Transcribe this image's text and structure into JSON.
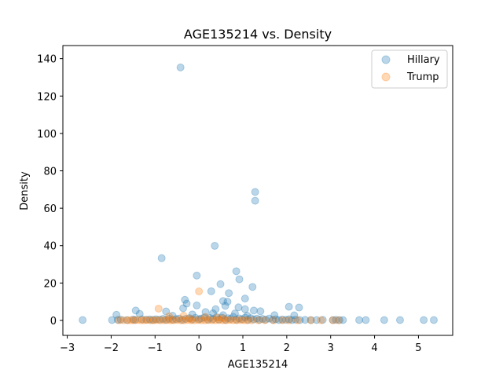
{
  "chart_data": {
    "type": "scatter",
    "title": "AGE135214 vs. Density",
    "xlabel": "AGE135214",
    "ylabel": "Density",
    "xlim": [
      -3.1,
      5.78
    ],
    "ylim": [
      -8,
      147
    ],
    "xticks": [
      -3,
      -2,
      -1,
      0,
      1,
      2,
      3,
      4,
      5
    ],
    "yticks": [
      0,
      20,
      40,
      60,
      80,
      100,
      120,
      140
    ],
    "grid": false,
    "legend_position": "top-right",
    "marker_alpha": 0.3,
    "series": [
      {
        "name": "Hillary",
        "color": "#1f77b4",
        "points": [
          [
            -0.42,
            135.3
          ],
          [
            1.28,
            68.7
          ],
          [
            1.28,
            64.0
          ],
          [
            0.36,
            39.9
          ],
          [
            -0.85,
            33.3
          ],
          [
            0.85,
            26.3
          ],
          [
            -0.05,
            24.0
          ],
          [
            0.92,
            22.0
          ],
          [
            0.49,
            19.4
          ],
          [
            1.22,
            17.9
          ],
          [
            0.28,
            15.6
          ],
          [
            0.68,
            14.6
          ],
          [
            -0.32,
            11.0
          ],
          [
            1.05,
            11.7
          ],
          [
            0.55,
            10.4
          ],
          [
            0.65,
            10.0
          ],
          [
            -0.28,
            9.0
          ],
          [
            -0.05,
            8.0
          ],
          [
            0.6,
            7.8
          ],
          [
            2.05,
            7.3
          ],
          [
            2.28,
            6.9
          ],
          [
            0.9,
            7.0
          ],
          [
            -0.36,
            6.5
          ],
          [
            0.38,
            6.0
          ],
          [
            1.05,
            6.0
          ],
          [
            -1.44,
            5.3
          ],
          [
            1.25,
            5.3
          ],
          [
            -0.75,
            4.8
          ],
          [
            0.15,
            4.5
          ],
          [
            1.4,
            4.9
          ],
          [
            -1.35,
            3.5
          ],
          [
            -1.88,
            3.0
          ],
          [
            -0.15,
            3.2
          ],
          [
            0.32,
            3.8
          ],
          [
            0.82,
            3.7
          ],
          [
            1.72,
            2.8
          ],
          [
            2.17,
            2.7
          ],
          [
            -0.6,
            2.5
          ],
          [
            0.55,
            2.8
          ],
          [
            1.1,
            2.5
          ],
          [
            -2.65,
            0.2
          ],
          [
            -1.98,
            0.2
          ],
          [
            -1.85,
            0.3
          ],
          [
            -1.78,
            0.4
          ],
          [
            -1.64,
            0.2
          ],
          [
            -1.5,
            0.5
          ],
          [
            -1.45,
            0.3
          ],
          [
            -1.3,
            0.6
          ],
          [
            -1.2,
            0.4
          ],
          [
            -1.12,
            0.5
          ],
          [
            -1.05,
            0.3
          ],
          [
            -0.98,
            0.6
          ],
          [
            -0.9,
            0.4
          ],
          [
            -0.82,
            0.8
          ],
          [
            -0.75,
            0.3
          ],
          [
            -0.68,
            0.9
          ],
          [
            -0.6,
            0.4
          ],
          [
            -0.52,
            0.7
          ],
          [
            -0.45,
            1.0
          ],
          [
            -0.38,
            0.3
          ],
          [
            -0.3,
            0.8
          ],
          [
            -0.22,
            1.2
          ],
          [
            -0.15,
            0.5
          ],
          [
            -0.08,
            1.4
          ],
          [
            0.0,
            0.6
          ],
          [
            0.05,
            1.0
          ],
          [
            0.12,
            1.6
          ],
          [
            0.2,
            0.4
          ],
          [
            0.25,
            1.3
          ],
          [
            0.32,
            0.7
          ],
          [
            0.4,
            1.8
          ],
          [
            0.45,
            0.5
          ],
          [
            0.52,
            1.5
          ],
          [
            0.6,
            0.3
          ],
          [
            0.66,
            1.2
          ],
          [
            0.72,
            0.8
          ],
          [
            0.78,
            1.9
          ],
          [
            0.85,
            0.4
          ],
          [
            0.92,
            1.1
          ],
          [
            0.98,
            0.6
          ],
          [
            1.05,
            1.5
          ],
          [
            1.12,
            0.3
          ],
          [
            1.18,
            1.2
          ],
          [
            1.25,
            0.5
          ],
          [
            1.32,
            1.0
          ],
          [
            1.38,
            0.3
          ],
          [
            1.45,
            0.8
          ],
          [
            1.52,
            0.4
          ],
          [
            1.6,
            1.0
          ],
          [
            1.68,
            0.3
          ],
          [
            1.75,
            0.6
          ],
          [
            1.82,
            0.2
          ],
          [
            1.9,
            0.5
          ],
          [
            1.98,
            0.3
          ],
          [
            2.05,
            0.6
          ],
          [
            2.12,
            0.2
          ],
          [
            2.2,
            0.4
          ],
          [
            2.3,
            0.2
          ],
          [
            2.42,
            0.3
          ],
          [
            2.55,
            0.2
          ],
          [
            2.68,
            0.2
          ],
          [
            2.82,
            0.3
          ],
          [
            3.05,
            0.2
          ],
          [
            3.12,
            0.3
          ],
          [
            3.2,
            0.2
          ],
          [
            3.28,
            0.2
          ],
          [
            3.65,
            0.2
          ],
          [
            3.8,
            0.2
          ],
          [
            4.22,
            0.2
          ],
          [
            4.58,
            0.2
          ],
          [
            5.12,
            0.2
          ],
          [
            5.35,
            0.2
          ]
        ]
      },
      {
        "name": "Trump",
        "color": "#ff7f0e",
        "points": [
          [
            0.0,
            15.5
          ],
          [
            -0.92,
            6.3
          ],
          [
            -0.68,
            2.2
          ],
          [
            -0.35,
            2.5
          ],
          [
            0.15,
            1.8
          ],
          [
            0.42,
            1.5
          ],
          [
            -0.2,
            1.0
          ],
          [
            0.55,
            1.2
          ],
          [
            -1.82,
            0.1
          ],
          [
            -1.72,
            0.1
          ],
          [
            -1.62,
            0.1
          ],
          [
            -1.55,
            0.1
          ],
          [
            -1.48,
            0.1
          ],
          [
            -1.4,
            0.2
          ],
          [
            -1.32,
            0.1
          ],
          [
            -1.25,
            0.1
          ],
          [
            -1.18,
            0.2
          ],
          [
            -1.1,
            0.1
          ],
          [
            -1.03,
            0.1
          ],
          [
            -0.96,
            0.2
          ],
          [
            -0.88,
            0.1
          ],
          [
            -0.8,
            0.1
          ],
          [
            -0.72,
            0.2
          ],
          [
            -0.65,
            0.1
          ],
          [
            -0.58,
            0.1
          ],
          [
            -0.5,
            0.2
          ],
          [
            -0.42,
            0.1
          ],
          [
            -0.34,
            0.1
          ],
          [
            -0.26,
            0.2
          ],
          [
            -0.18,
            0.1
          ],
          [
            -0.1,
            0.1
          ],
          [
            -0.02,
            0.2
          ],
          [
            0.06,
            0.1
          ],
          [
            0.14,
            0.1
          ],
          [
            0.22,
            0.2
          ],
          [
            0.3,
            0.1
          ],
          [
            0.38,
            0.1
          ],
          [
            0.46,
            0.2
          ],
          [
            0.54,
            0.1
          ],
          [
            0.62,
            0.1
          ],
          [
            0.7,
            0.2
          ],
          [
            0.78,
            0.1
          ],
          [
            0.86,
            0.1
          ],
          [
            0.94,
            0.2
          ],
          [
            1.02,
            0.1
          ],
          [
            1.1,
            0.1
          ],
          [
            1.2,
            0.1
          ],
          [
            1.35,
            0.1
          ],
          [
            1.5,
            0.1
          ],
          [
            1.7,
            0.1
          ],
          [
            1.9,
            0.1
          ],
          [
            2.05,
            0.1
          ],
          [
            2.25,
            0.1
          ],
          [
            2.55,
            0.1
          ],
          [
            2.78,
            0.1
          ],
          [
            3.05,
            0.1
          ],
          [
            3.18,
            0.1
          ]
        ]
      }
    ]
  }
}
